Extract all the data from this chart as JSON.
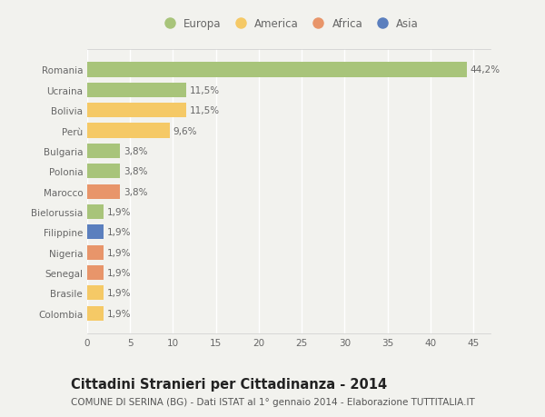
{
  "categories": [
    "Romania",
    "Ucraina",
    "Bolivia",
    "Perù",
    "Bulgaria",
    "Polonia",
    "Marocco",
    "Bielorussia",
    "Filippine",
    "Nigeria",
    "Senegal",
    "Brasile",
    "Colombia"
  ],
  "values": [
    44.2,
    11.5,
    11.5,
    9.6,
    3.8,
    3.8,
    3.8,
    1.9,
    1.9,
    1.9,
    1.9,
    1.9,
    1.9
  ],
  "labels": [
    "44,2%",
    "11,5%",
    "11,5%",
    "9,6%",
    "3,8%",
    "3,8%",
    "3,8%",
    "1,9%",
    "1,9%",
    "1,9%",
    "1,9%",
    "1,9%",
    "1,9%"
  ],
  "colors": [
    "#a8c47a",
    "#a8c47a",
    "#f5c966",
    "#f5c966",
    "#a8c47a",
    "#a8c47a",
    "#e8956a",
    "#a8c47a",
    "#5b7fbe",
    "#e8956a",
    "#e8956a",
    "#f5c966",
    "#f5c966"
  ],
  "legend_labels": [
    "Europa",
    "America",
    "Africa",
    "Asia"
  ],
  "legend_colors": [
    "#a8c47a",
    "#f5c966",
    "#e8956a",
    "#5b7fbe"
  ],
  "xlim": [
    0,
    47
  ],
  "xticks": [
    0,
    5,
    10,
    15,
    20,
    25,
    30,
    35,
    40,
    45
  ],
  "title": "Cittadini Stranieri per Cittadinanza - 2014",
  "subtitle": "COMUNE DI SERINA (BG) - Dati ISTAT al 1° gennaio 2014 - Elaborazione TUTTITALIA.IT",
  "background_color": "#f2f2ee",
  "grid_color": "#ffffff",
  "bar_height": 0.72,
  "title_fontsize": 10.5,
  "subtitle_fontsize": 7.5,
  "label_fontsize": 7.5,
  "tick_fontsize": 7.5,
  "legend_fontsize": 8.5
}
